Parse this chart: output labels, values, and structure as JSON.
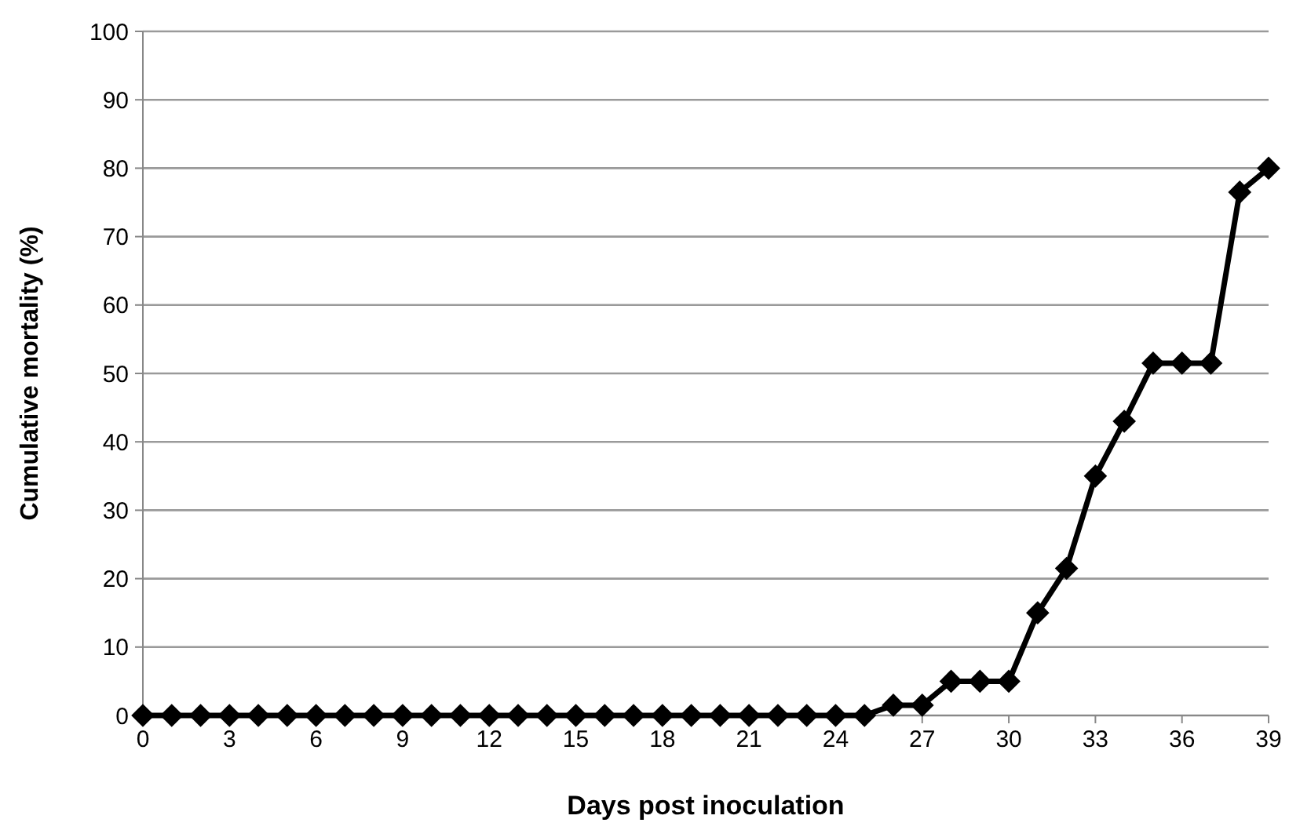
{
  "chart_data": {
    "type": "line",
    "xlabel": "Days post inoculation",
    "ylabel": "Cumulative mortality (%)",
    "x": [
      0,
      1,
      2,
      3,
      4,
      5,
      6,
      7,
      8,
      9,
      10,
      11,
      12,
      13,
      14,
      15,
      16,
      17,
      18,
      19,
      20,
      21,
      22,
      23,
      24,
      25,
      26,
      27,
      28,
      29,
      30,
      31,
      32,
      33,
      34,
      35,
      36,
      37,
      38,
      39
    ],
    "series": [
      {
        "color": "#000000",
        "values": [
          0,
          0,
          0,
          0,
          0,
          0,
          0,
          0,
          0,
          0,
          0,
          0,
          0,
          0,
          0,
          0,
          0,
          0,
          0,
          0,
          0,
          0,
          0,
          0,
          0,
          0,
          1.5,
          1.5,
          5,
          5,
          5,
          15,
          21.5,
          35,
          43,
          51.5,
          51.5,
          51.5,
          76.5,
          80
        ]
      }
    ],
    "xlim": [
      0,
      39
    ],
    "xticks": [
      0,
      3,
      6,
      9,
      12,
      15,
      18,
      21,
      24,
      27,
      30,
      33,
      36,
      39
    ],
    "ylim": [
      0,
      100
    ],
    "yticks": [
      0,
      10,
      20,
      30,
      40,
      50,
      60,
      70,
      80,
      90,
      100
    ],
    "grid": "y",
    "marker": "diamond",
    "line_style": "solid"
  }
}
